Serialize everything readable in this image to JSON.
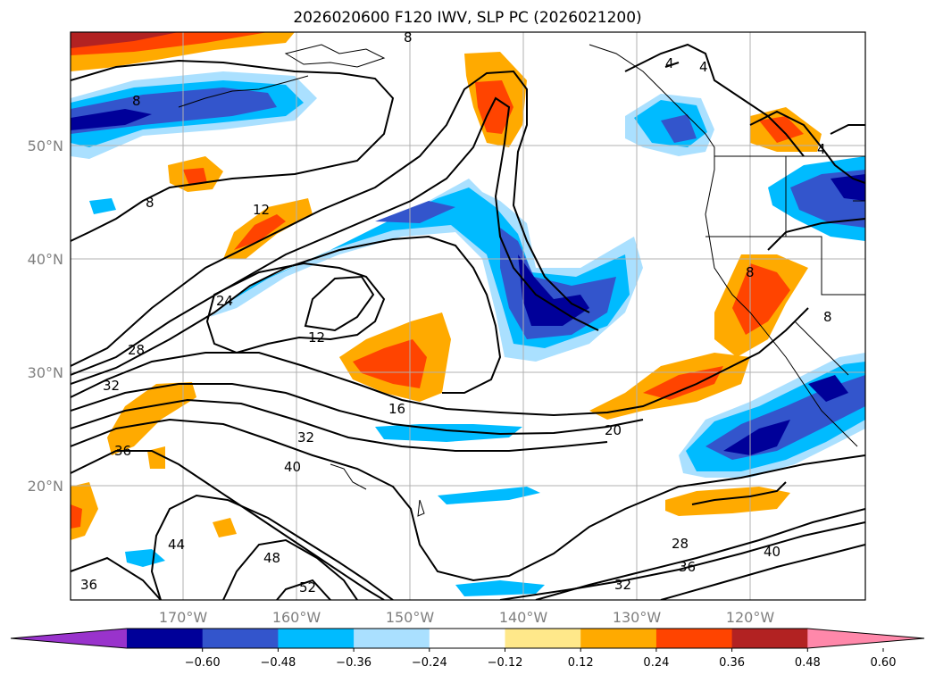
{
  "title": "2026020600 F120 IWV, SLP PC (2026021200)",
  "lon_ticks": [
    "170°W",
    "160°W",
    "150°W",
    "140°W",
    "130°W",
    "120°W"
  ],
  "lat_ticks": [
    "50°N",
    "40°N",
    "30°N",
    "20°N"
  ],
  "colorbar": {
    "colors": [
      "#9933cc",
      "#000099",
      "#3355cc",
      "#00bbff",
      "#aae0ff",
      "#ffffff",
      "#ffe88a",
      "#ffaa00",
      "#ff4400",
      "#b22222",
      "#ff88aa"
    ],
    "ticks": [
      "−0.60",
      "−0.48",
      "−0.36",
      "−0.24",
      "−0.12",
      "0.12",
      "0.24",
      "0.36",
      "0.48",
      "0.60"
    ]
  },
  "contour_labels": [
    "8",
    "8",
    "12",
    "12",
    "16",
    "20",
    "24",
    "28",
    "32",
    "32",
    "36",
    "36",
    "40",
    "44",
    "48",
    "52",
    "28",
    "32",
    "36",
    "40",
    "4",
    "4",
    "4",
    "8",
    "8",
    "8"
  ]
}
